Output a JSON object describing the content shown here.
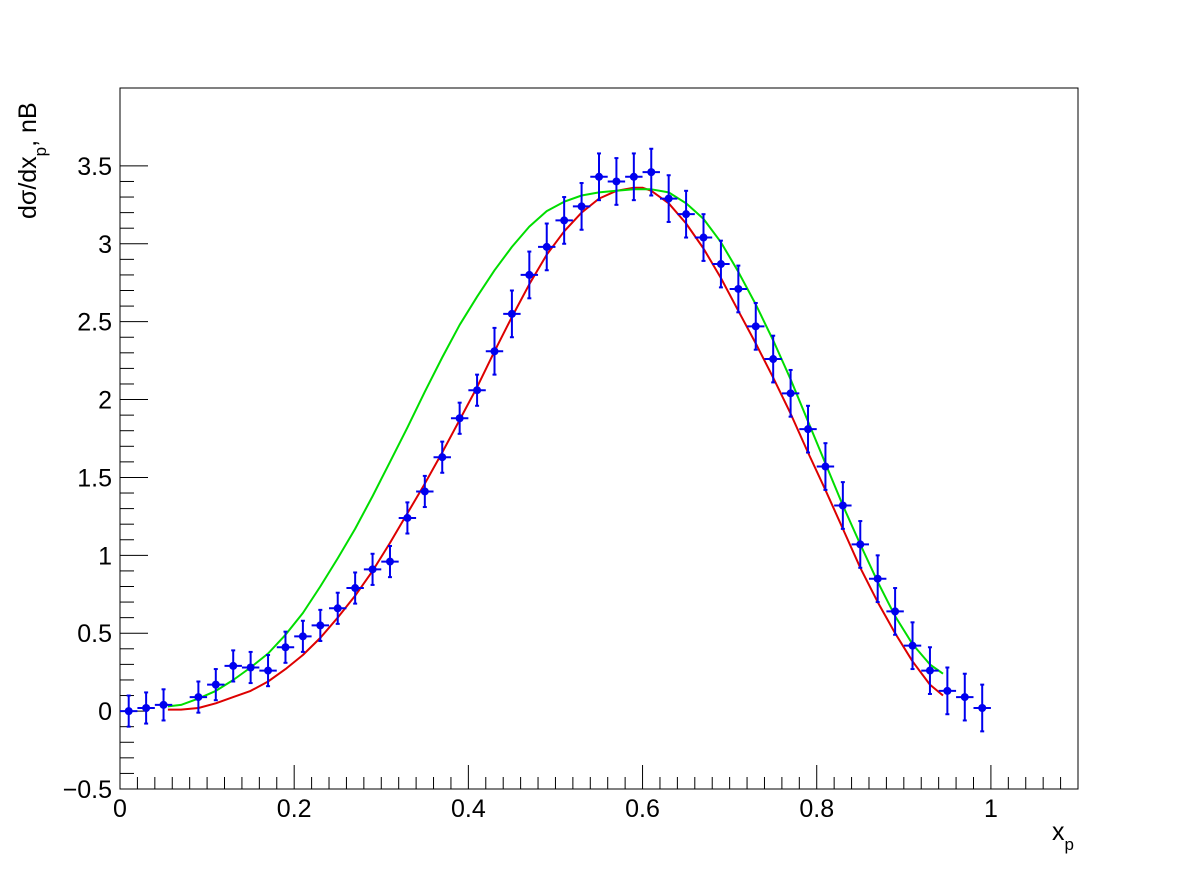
{
  "chart_data": {
    "type": "scatter",
    "title": "",
    "xlabel": "x_p",
    "ylabel": "dσ/dx_p, nB",
    "xlim": [
      0,
      1.1
    ],
    "ylim": [
      -0.5,
      4.0
    ],
    "x_ticks": [
      0,
      0.2,
      0.4,
      0.6,
      0.8,
      1
    ],
    "x_tick_labels": [
      "0",
      "0.2",
      "0.4",
      "0.6",
      "0.8",
      "1"
    ],
    "y_ticks": [
      -0.5,
      0,
      0.5,
      1,
      1.5,
      2,
      2.5,
      3,
      3.5
    ],
    "y_tick_labels": [
      "−0.5",
      "0",
      "0.5",
      "1",
      "1.5",
      "2",
      "2.5",
      "3",
      "3.5"
    ],
    "grid": false,
    "legend": "none",
    "colors": {
      "points": "#0000ee",
      "red_curve": "#dd0000",
      "green_curve": "#00dd00"
    },
    "series": [
      {
        "kind": "points",
        "color": "#0000ee",
        "x_err": 0.01,
        "x": [
          0.01,
          0.03,
          0.05,
          0.09,
          0.11,
          0.13,
          0.15,
          0.17,
          0.19,
          0.21,
          0.23,
          0.25,
          0.27,
          0.29,
          0.31,
          0.33,
          0.35,
          0.37,
          0.39,
          0.41,
          0.43,
          0.45,
          0.47,
          0.49,
          0.51,
          0.53,
          0.55,
          0.57,
          0.59,
          0.61,
          0.63,
          0.65,
          0.67,
          0.69,
          0.71,
          0.73,
          0.75,
          0.77,
          0.79,
          0.81,
          0.83,
          0.85,
          0.87,
          0.89,
          0.91,
          0.93,
          0.95,
          0.97,
          0.99
        ],
        "y": [
          0.0,
          0.02,
          0.04,
          0.09,
          0.17,
          0.29,
          0.28,
          0.26,
          0.41,
          0.48,
          0.55,
          0.66,
          0.79,
          0.91,
          0.96,
          1.24,
          1.41,
          1.63,
          1.88,
          2.06,
          2.31,
          2.55,
          2.8,
          2.98,
          3.15,
          3.24,
          3.43,
          3.4,
          3.43,
          3.46,
          3.29,
          3.19,
          3.04,
          2.87,
          2.71,
          2.47,
          2.26,
          2.04,
          1.81,
          1.57,
          1.32,
          1.07,
          0.85,
          0.64,
          0.42,
          0.26,
          0.13,
          0.09,
          0.02
        ],
        "y_err": [
          0.1,
          0.1,
          0.1,
          0.1,
          0.1,
          0.1,
          0.1,
          0.1,
          0.1,
          0.1,
          0.1,
          0.1,
          0.1,
          0.1,
          0.1,
          0.1,
          0.1,
          0.1,
          0.1,
          0.1,
          0.15,
          0.15,
          0.15,
          0.15,
          0.15,
          0.15,
          0.15,
          0.15,
          0.15,
          0.15,
          0.15,
          0.15,
          0.15,
          0.15,
          0.15,
          0.15,
          0.15,
          0.15,
          0.15,
          0.15,
          0.15,
          0.15,
          0.15,
          0.15,
          0.15,
          0.15,
          0.15,
          0.15,
          0.15
        ]
      },
      {
        "kind": "line",
        "color": "#dd0000",
        "x": [
          0.055,
          0.07,
          0.09,
          0.11,
          0.13,
          0.15,
          0.17,
          0.19,
          0.21,
          0.23,
          0.25,
          0.27,
          0.29,
          0.31,
          0.33,
          0.35,
          0.37,
          0.39,
          0.41,
          0.43,
          0.45,
          0.47,
          0.49,
          0.51,
          0.53,
          0.55,
          0.57,
          0.59,
          0.6,
          0.61,
          0.63,
          0.65,
          0.67,
          0.69,
          0.71,
          0.73,
          0.75,
          0.77,
          0.79,
          0.81,
          0.83,
          0.85,
          0.87,
          0.89,
          0.91,
          0.93,
          0.945
        ],
        "y": [
          0.01,
          0.01,
          0.02,
          0.05,
          0.09,
          0.13,
          0.19,
          0.27,
          0.36,
          0.47,
          0.6,
          0.74,
          0.9,
          1.08,
          1.27,
          1.46,
          1.66,
          1.87,
          2.08,
          2.31,
          2.53,
          2.74,
          2.93,
          3.08,
          3.2,
          3.29,
          3.34,
          3.36,
          3.36,
          3.34,
          3.26,
          3.13,
          2.97,
          2.78,
          2.57,
          2.36,
          2.14,
          1.91,
          1.66,
          1.42,
          1.17,
          0.92,
          0.7,
          0.5,
          0.32,
          0.17,
          0.1
        ]
      },
      {
        "kind": "line",
        "color": "#00dd00",
        "x": [
          0.055,
          0.07,
          0.09,
          0.11,
          0.13,
          0.15,
          0.17,
          0.19,
          0.21,
          0.23,
          0.25,
          0.27,
          0.29,
          0.31,
          0.33,
          0.35,
          0.37,
          0.39,
          0.41,
          0.43,
          0.45,
          0.47,
          0.49,
          0.51,
          0.53,
          0.55,
          0.57,
          0.59,
          0.6,
          0.61,
          0.63,
          0.65,
          0.67,
          0.69,
          0.71,
          0.73,
          0.75,
          0.77,
          0.79,
          0.81,
          0.83,
          0.85,
          0.87,
          0.89,
          0.91,
          0.93,
          0.945
        ],
        "y": [
          0.03,
          0.04,
          0.08,
          0.13,
          0.2,
          0.28,
          0.37,
          0.49,
          0.63,
          0.8,
          0.98,
          1.17,
          1.38,
          1.6,
          1.82,
          2.05,
          2.27,
          2.48,
          2.66,
          2.83,
          2.98,
          3.11,
          3.21,
          3.27,
          3.31,
          3.33,
          3.34,
          3.35,
          3.35,
          3.35,
          3.33,
          3.26,
          3.16,
          3.01,
          2.82,
          2.61,
          2.38,
          2.13,
          1.86,
          1.59,
          1.32,
          1.07,
          0.83,
          0.61,
          0.43,
          0.3,
          0.24
        ]
      }
    ]
  }
}
